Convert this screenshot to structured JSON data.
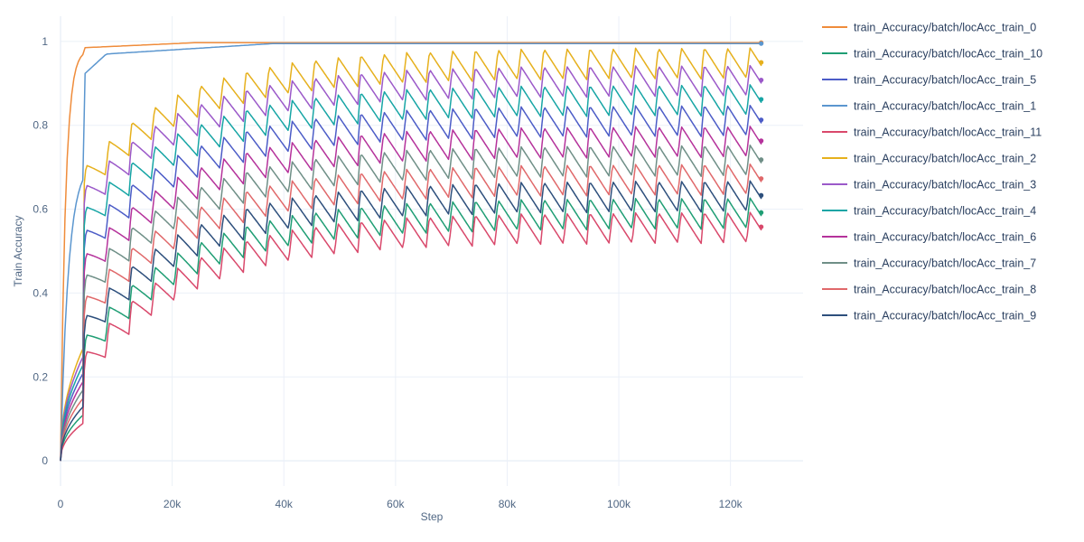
{
  "chart_data": {
    "type": "line",
    "title": "",
    "xlabel": "Step",
    "ylabel": "Train Accuracy",
    "xlim": [
      0,
      133000
    ],
    "ylim": [
      -0.06,
      1.06
    ],
    "x_ticks": [
      0,
      20000,
      40000,
      60000,
      80000,
      100000,
      120000
    ],
    "x_tick_labels": [
      "0",
      "20k",
      "40k",
      "60k",
      "80k",
      "100k",
      "120k"
    ],
    "y_ticks": [
      0,
      0.2,
      0.4,
      0.6,
      0.8,
      1
    ],
    "y_tick_labels": [
      "0",
      "0.2",
      "0.4",
      "0.6",
      "0.8",
      "1"
    ],
    "grid": true,
    "legend_position": "right",
    "x_end": 125500,
    "series": [
      {
        "name": "train_Accuracy/batch/locAcc_train_0",
        "color": "#ef8c3b",
        "end": 0.997
      },
      {
        "name": "train_Accuracy/batch/locAcc_train_10",
        "color": "#1f9e74",
        "end": 0.592
      },
      {
        "name": "train_Accuracy/batch/locAcc_train_5",
        "color": "#4c5cc7",
        "end": 0.813
      },
      {
        "name": "train_Accuracy/batch/locAcc_train_1",
        "color": "#5b96cf",
        "end": 0.995
      },
      {
        "name": "train_Accuracy/batch/locAcc_train_11",
        "color": "#d9486b",
        "end": 0.558
      },
      {
        "name": "train_Accuracy/batch/locAcc_train_2",
        "color": "#e6b01c",
        "end": 0.95
      },
      {
        "name": "train_Accuracy/batch/locAcc_train_3",
        "color": "#9b59c9",
        "end": 0.908
      },
      {
        "name": "train_Accuracy/batch/locAcc_train_4",
        "color": "#17a5a5",
        "end": 0.862
      },
      {
        "name": "train_Accuracy/batch/locAcc_train_6",
        "color": "#b5329b",
        "end": 0.763
      },
      {
        "name": "train_Accuracy/batch/locAcc_train_7",
        "color": "#6f8f87",
        "end": 0.718
      },
      {
        "name": "train_Accuracy/batch/locAcc_train_8",
        "color": "#e0686a",
        "end": 0.673
      },
      {
        "name": "train_Accuracy/batch/locAcc_train_9",
        "color": "#2d4f7c",
        "end": 0.633
      }
    ]
  }
}
